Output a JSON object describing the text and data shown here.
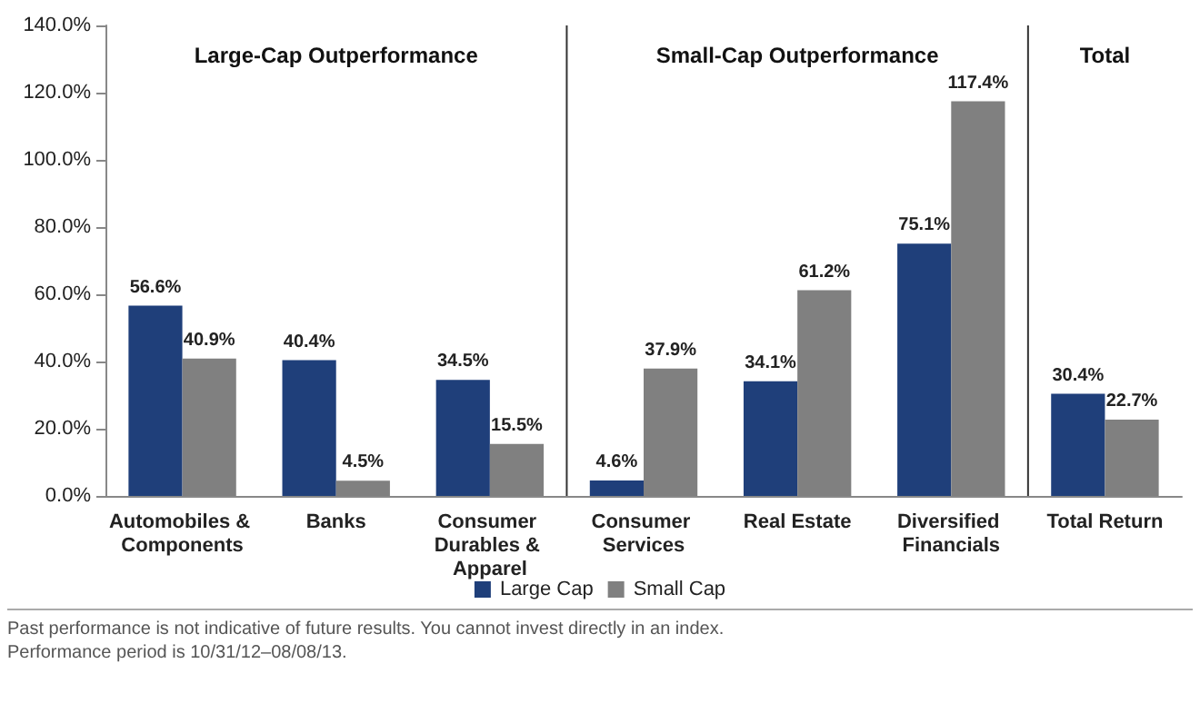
{
  "chart_data": {
    "type": "bar",
    "categories": [
      "Automobiles & Components",
      "Banks",
      "Consumer Durables & Apparel",
      "Consumer Services",
      "Real Estate",
      "Diversified Financials",
      "Total Return"
    ],
    "series": [
      {
        "name": "Large Cap",
        "color": "#1f3f7a",
        "values": [
          56.6,
          40.4,
          34.5,
          4.6,
          34.1,
          75.1,
          30.4
        ],
        "value_labels": [
          "56.6%",
          "40.4%",
          "34.5%",
          "4.6%",
          "34.1%",
          "75.1%",
          "30.4%"
        ]
      },
      {
        "name": "Small Cap",
        "color": "#808080",
        "values": [
          40.9,
          4.5,
          15.5,
          37.9,
          61.2,
          117.4,
          22.7
        ],
        "value_labels": [
          "40.9%",
          "4.5%",
          "15.5%",
          "37.9%",
          "61.2%",
          "117.4%",
          "22.7%"
        ]
      }
    ],
    "ylim": [
      0,
      140
    ],
    "yticks": [
      {
        "value": 0,
        "label": "0.0%"
      },
      {
        "value": 20,
        "label": "20.0%"
      },
      {
        "value": 40,
        "label": "40.0%"
      },
      {
        "value": 60,
        "label": "60.0%"
      },
      {
        "value": 80,
        "label": "80.0%"
      },
      {
        "value": 100,
        "label": "100.0%"
      },
      {
        "value": 120,
        "label": "120.0%"
      },
      {
        "value": 140,
        "label": "140.0%"
      }
    ],
    "annotations": [
      "Large-Cap Outperformance",
      "Small-Cap Outperformance",
      "Total",
      "Past performance is not indicative of future results. You cannot invest directly in an index.",
      "Performance period is 10/31/12–08/08/13."
    ],
    "grid": false,
    "legend": "bottom"
  }
}
